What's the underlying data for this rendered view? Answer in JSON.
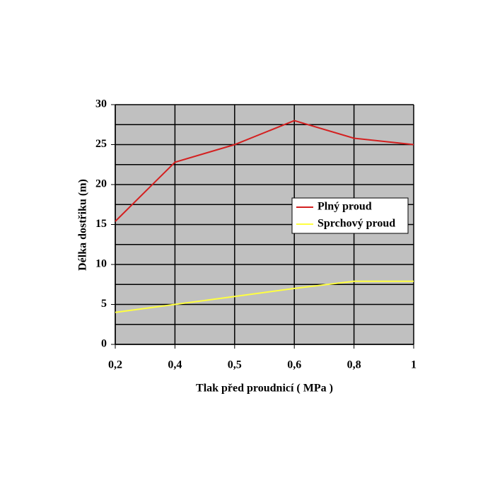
{
  "chart_data": {
    "type": "line",
    "xlabel": "Tlak před proudnicí ( MPa )",
    "ylabel": "Délka dostřiku (m)",
    "categories": [
      "0,2",
      "0,4",
      "0,5",
      "0,6",
      "0,8",
      "1"
    ],
    "series": [
      {
        "name": "Plný proud",
        "color": "#d42020",
        "values": [
          15.4,
          22.8,
          25,
          28,
          25.8,
          25
        ]
      },
      {
        "name": "Sprchový proud",
        "color": "#ffff40",
        "values": [
          4,
          5,
          6,
          7,
          7.9,
          7.9
        ]
      }
    ],
    "ylim": [
      0,
      30
    ],
    "yticks": [
      0,
      5,
      10,
      15,
      20,
      25,
      30
    ],
    "y_minor_ticks": [
      2.5,
      7.5,
      12.5,
      17.5,
      22.5,
      27.5
    ],
    "grid": true,
    "plot_background": "#c0c0c0",
    "legend": "right"
  }
}
